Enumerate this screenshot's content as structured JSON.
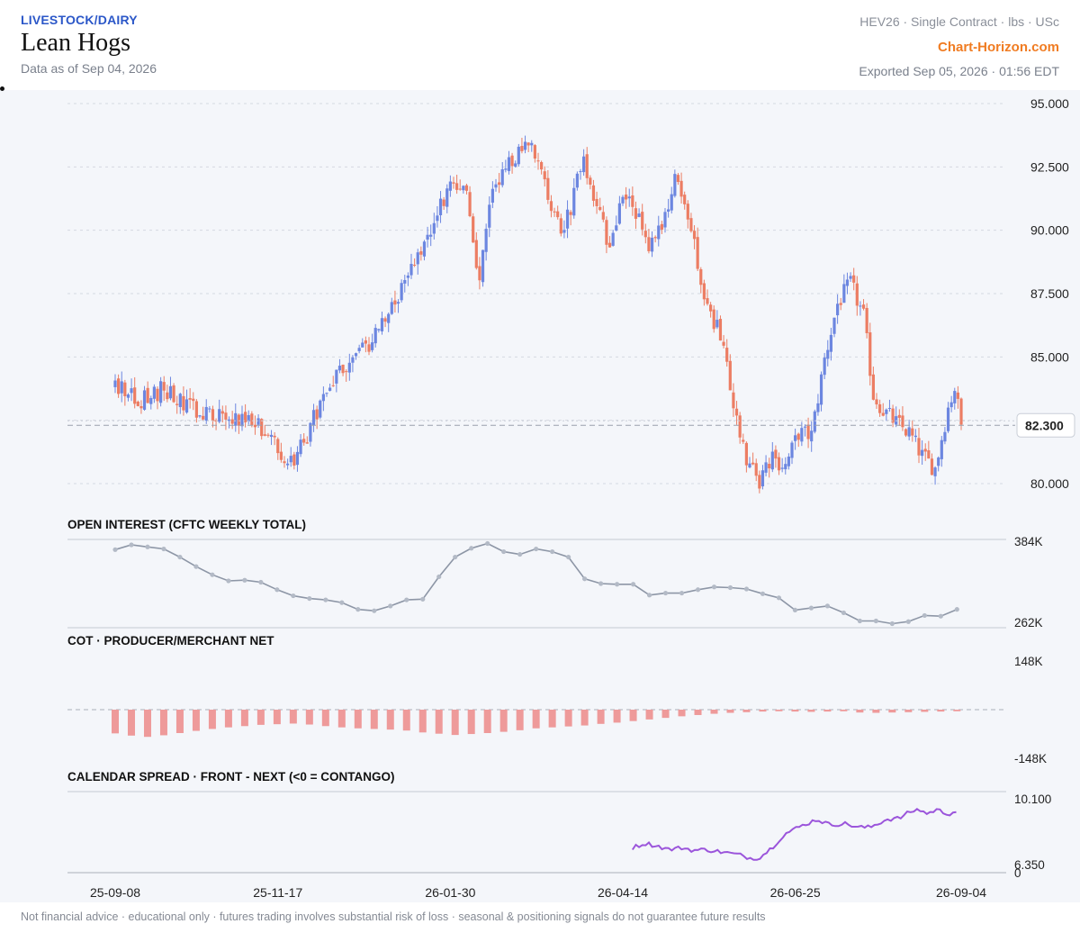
{
  "header": {
    "category": "LIVESTOCK/DAIRY",
    "title": "Lean Hogs",
    "as_of": "Data as of Sep 04, 2026",
    "contract": "HEV26 · Single Contract · lbs · USc",
    "brand": "Chart-Horizon.com",
    "exported": "Exported Sep 05, 2026 · 01:56 EDT"
  },
  "footer": {
    "disclaimer": "Not financial advice · educational only · futures trading involves substantial risk of loss · seasonal & positioning signals do not guarantee future results"
  },
  "colors": {
    "up": "#6c86e0",
    "down": "#ec7d63",
    "oi_line": "#8d96a6",
    "cot_bar": "#ee9a9a",
    "spread_line": "#9b55db",
    "grid": "#d5d9e1"
  },
  "chart_data": [
    {
      "type": "candlestick",
      "name": "price",
      "yticks": [
        "80.000",
        "82.500",
        "85.000",
        "87.500",
        "90.000",
        "92.500",
        "95.000"
      ],
      "ylim": [
        79.5,
        95.2
      ],
      "last_price": 82.3,
      "last_price_label": "82.300",
      "x_tick_labels": [
        "25-09-08",
        "25-11-17",
        "26-01-30",
        "26-04-14",
        "26-06-25",
        "26-09-04"
      ],
      "x_tick_index": [
        0,
        50,
        103,
        156,
        209,
        260
      ],
      "waypoints": [
        [
          0,
          83.8
        ],
        [
          8,
          83.3
        ],
        [
          14,
          83.7
        ],
        [
          22,
          83.1
        ],
        [
          30,
          82.6
        ],
        [
          40,
          82.5
        ],
        [
          46,
          82.1
        ],
        [
          50,
          81.4
        ],
        [
          54,
          80.8
        ],
        [
          58,
          81.6
        ],
        [
          64,
          83.5
        ],
        [
          70,
          84.6
        ],
        [
          80,
          85.8
        ],
        [
          88,
          87.6
        ],
        [
          95,
          89.5
        ],
        [
          103,
          91.7
        ],
        [
          108,
          91.8
        ],
        [
          110,
          89.4
        ],
        [
          112,
          88.2
        ],
        [
          116,
          91.6
        ],
        [
          122,
          92.7
        ],
        [
          128,
          93.5
        ],
        [
          131,
          92.5
        ],
        [
          134,
          90.5
        ],
        [
          138,
          89.9
        ],
        [
          141,
          91.5
        ],
        [
          144,
          92.6
        ],
        [
          148,
          91.0
        ],
        [
          152,
          89.3
        ],
        [
          156,
          91.5
        ],
        [
          160,
          90.7
        ],
        [
          164,
          89.5
        ],
        [
          168,
          90.3
        ],
        [
          172,
          92.0
        ],
        [
          176,
          90.6
        ],
        [
          180,
          88.0
        ],
        [
          186,
          85.7
        ],
        [
          190,
          83.2
        ],
        [
          194,
          81.0
        ],
        [
          198,
          80.1
        ],
        [
          202,
          81.0
        ],
        [
          206,
          80.7
        ],
        [
          210,
          82.0
        ],
        [
          214,
          81.9
        ],
        [
          218,
          84.9
        ],
        [
          222,
          87.1
        ],
        [
          226,
          87.9
        ],
        [
          230,
          86.6
        ],
        [
          233,
          83.5
        ],
        [
          236,
          82.9
        ],
        [
          240,
          82.4
        ],
        [
          244,
          82.0
        ],
        [
          248,
          81.1
        ],
        [
          252,
          80.6
        ],
        [
          256,
          83.0
        ],
        [
          258,
          83.8
        ],
        [
          260,
          82.3
        ]
      ],
      "volatility": 0.32
    },
    {
      "type": "line",
      "name": "open_interest",
      "title": "OPEN INTEREST (CFTC WEEKLY TOTAL)",
      "yticks": [
        "262K",
        "384K"
      ],
      "ylim": [
        262000,
        384000
      ],
      "values": [
        373000,
        380000,
        377000,
        374000,
        362000,
        348000,
        336000,
        327000,
        328000,
        325000,
        314000,
        305000,
        301000,
        299000,
        295000,
        285000,
        283000,
        290000,
        299000,
        300000,
        333000,
        362000,
        375000,
        382000,
        370000,
        366000,
        374000,
        370000,
        362000,
        330000,
        323000,
        322000,
        322000,
        306000,
        309000,
        309000,
        314000,
        318000,
        317000,
        315000,
        308000,
        302000,
        284000,
        287000,
        290000,
        280000,
        268000,
        268000,
        264000,
        267000,
        276000,
        275000,
        285000
      ]
    },
    {
      "type": "bar",
      "name": "cot_net",
      "title": "COT · PRODUCER/MERCHANT NET",
      "yticks": [
        "148K",
        "-148K"
      ],
      "ylim": [
        -148000,
        148000
      ],
      "values": [
        -75000,
        -82000,
        -86000,
        -81000,
        -74000,
        -67000,
        -61000,
        -56000,
        -52000,
        -48000,
        -46000,
        -44000,
        -47000,
        -52000,
        -56000,
        -59000,
        -61000,
        -63000,
        -66000,
        -72000,
        -76000,
        -80000,
        -77000,
        -74000,
        -70000,
        -65000,
        -59000,
        -56000,
        -53000,
        -50000,
        -45000,
        -41000,
        -36000,
        -31000,
        -26000,
        -21000,
        -17000,
        -13000,
        -10000,
        -8000,
        -6000,
        -5000,
        -6000,
        -7000,
        -6000,
        -5000,
        -9000,
        -10000,
        -9000,
        -8000,
        -7000,
        -6000,
        -5000
      ]
    },
    {
      "type": "line",
      "name": "calendar_spread",
      "title": "CALENDAR SPREAD · FRONT - NEXT (<0 = CONTANGO)",
      "yticks": [
        "10.100",
        "6.350",
        "0"
      ],
      "ylim": [
        6.35,
        10.1
      ],
      "start_index": 159,
      "waypoints": [
        [
          0,
          7.45
        ],
        [
          3,
          7.7
        ],
        [
          6,
          7.55
        ],
        [
          9,
          7.35
        ],
        [
          12,
          7.45
        ],
        [
          15,
          7.3
        ],
        [
          18,
          7.35
        ],
        [
          22,
          7.2
        ],
        [
          26,
          7.05
        ],
        [
          29,
          6.85
        ],
        [
          31,
          6.9
        ],
        [
          34,
          7.45
        ],
        [
          37,
          8.2
        ],
        [
          40,
          8.55
        ],
        [
          43,
          8.85
        ],
        [
          45,
          9.05
        ],
        [
          48,
          8.75
        ],
        [
          52,
          8.8
        ],
        [
          55,
          8.6
        ],
        [
          58,
          8.6
        ],
        [
          62,
          9.05
        ],
        [
          65,
          9.1
        ],
        [
          68,
          9.5
        ],
        [
          70,
          9.6
        ],
        [
          72,
          9.35
        ],
        [
          74,
          9.6
        ],
        [
          77,
          9.35
        ],
        [
          79,
          9.5
        ]
      ],
      "volatility": 0.12
    }
  ]
}
